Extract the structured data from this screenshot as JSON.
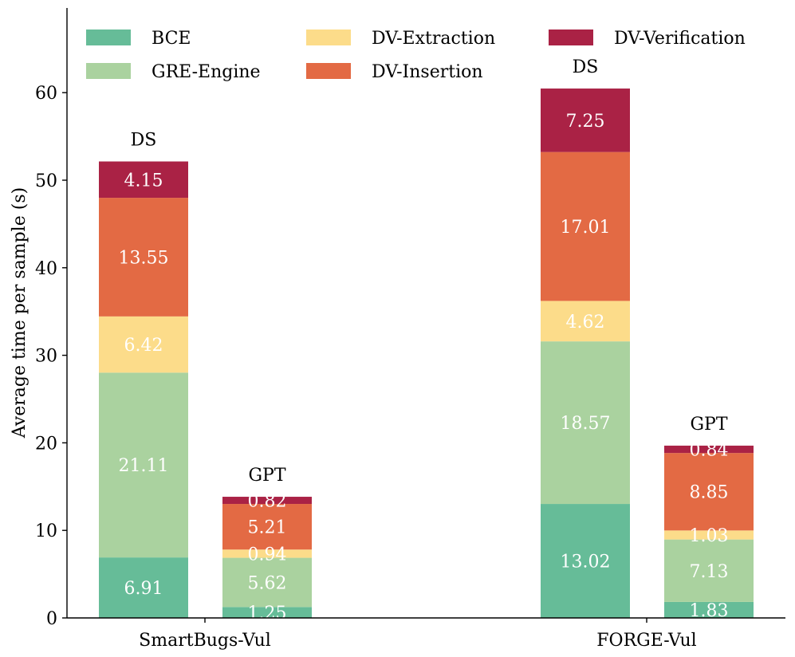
{
  "chart_data": {
    "type": "bar",
    "stacked": true,
    "title": "",
    "xlabel": "",
    "ylabel": "Average time per sample (s)",
    "ylim": [
      0,
      69
    ],
    "yticks": [
      0,
      10,
      20,
      30,
      40,
      50,
      60
    ],
    "grid": false,
    "legend_position": "top",
    "categories": [
      "SmartBugs-Vul",
      "FORGE-Vul"
    ],
    "stack_labels": [
      "DS",
      "GPT"
    ],
    "series": [
      {
        "name": "BCE",
        "color": "#66bc98",
        "values": [
          [
            6.91,
            1.25
          ],
          [
            13.02,
            1.83
          ]
        ]
      },
      {
        "name": "GRE-Engine",
        "color": "#aad29f",
        "values": [
          [
            21.11,
            5.62
          ],
          [
            18.57,
            7.13
          ]
        ]
      },
      {
        "name": "DV-Extraction",
        "color": "#fcdc8a",
        "values": [
          [
            6.42,
            0.94
          ],
          [
            4.62,
            1.03
          ]
        ]
      },
      {
        "name": "DV-Insertion",
        "color": "#e36a44",
        "values": [
          [
            13.55,
            5.21
          ],
          [
            17.01,
            8.85
          ]
        ]
      },
      {
        "name": "DV-Verification",
        "color": "#aa2245",
        "values": [
          [
            4.15,
            0.82
          ],
          [
            7.25,
            0.84
          ]
        ]
      }
    ],
    "value_labels": [
      [
        [
          "6.91",
          "21.11",
          "6.42",
          "13.55",
          "4.15"
        ],
        [
          "1.25",
          "5.62",
          "0.94",
          "5.21",
          "0.82"
        ]
      ],
      [
        [
          "13.02",
          "18.57",
          "4.62",
          "17.01",
          "7.25"
        ],
        [
          "1.83",
          "7.13",
          "1.03",
          "8.85",
          "0.84"
        ]
      ]
    ]
  }
}
